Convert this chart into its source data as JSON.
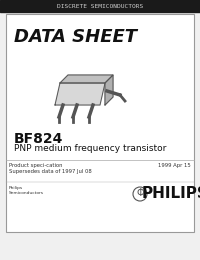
{
  "bg_color": "#f0f0f0",
  "header_bar_color": "#1a1a1a",
  "header_text": "DISCRETE SEMICONDUCTORS",
  "header_text_color": "#cccccc",
  "card_bg": "#ffffff",
  "card_border": "#999999",
  "title_text": "DATA SHEET",
  "title_color": "#111111",
  "part_number": "BF824",
  "description": "PNP medium frequency transistor",
  "product_spec_label": "Product speci­cation",
  "supersedes_label": "Supersedes data of 1997 Jul 08",
  "date_label": "1999 Apr 15",
  "philips_text": "PHILIPS",
  "philips_semi": "Philips\nSemiconductors"
}
